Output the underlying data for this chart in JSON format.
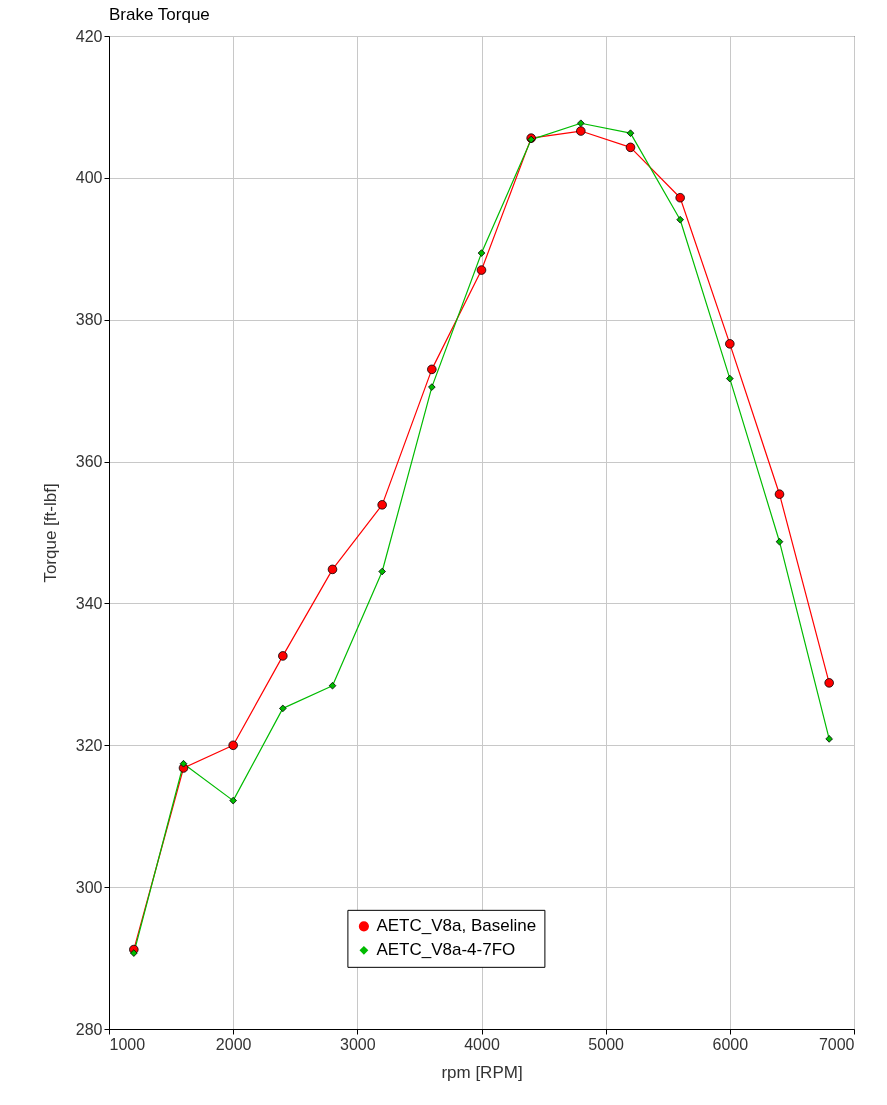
{
  "chart_data": {
    "type": "line",
    "title": "Brake Torque",
    "xlabel": "rpm [RPM]",
    "ylabel": "Torque [ft-lbf]",
    "x": [
      1200,
      1600,
      2000,
      2400,
      2800,
      3200,
      3600,
      4000,
      4400,
      4800,
      5200,
      5600,
      6000,
      6400,
      6800
    ],
    "series": [
      {
        "name": "AETC_V8a, Baseline",
        "color": "#ff0000",
        "marker": "circle",
        "values": [
          291.2,
          316.8,
          320.0,
          332.6,
          344.8,
          353.9,
          373.0,
          387.0,
          405.6,
          406.6,
          404.3,
          397.2,
          376.6,
          355.4,
          328.8
        ]
      },
      {
        "name": "AETC_V8a-4-7FO",
        "color": "#00bb00",
        "marker": "diamond",
        "values": [
          290.7,
          317.4,
          312.2,
          325.2,
          328.4,
          344.5,
          370.5,
          389.4,
          405.4,
          407.7,
          406.3,
          394.1,
          371.7,
          348.7,
          320.9
        ]
      }
    ],
    "xlim": [
      1000,
      7000
    ],
    "xticks": [
      1000,
      2000,
      3000,
      4000,
      5000,
      6000,
      7000
    ],
    "ylim": [
      280,
      420
    ],
    "yticks": [
      280,
      300,
      320,
      340,
      360,
      380,
      400,
      420
    ],
    "grid": true,
    "legend": "bottom",
    "line_style": "solid"
  }
}
